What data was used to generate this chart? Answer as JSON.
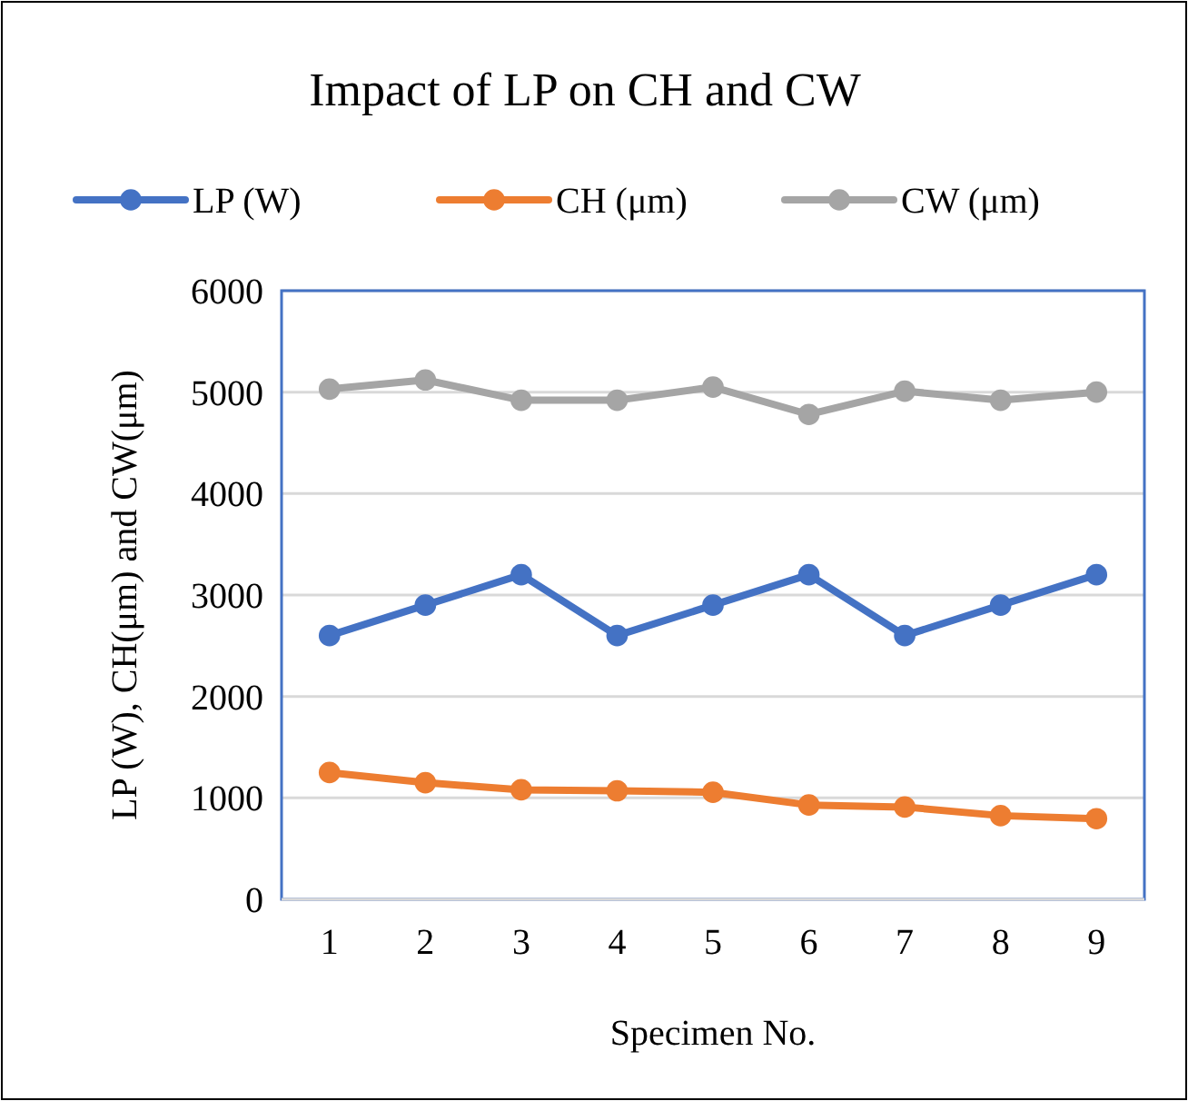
{
  "chart_data": {
    "type": "line",
    "title": "Impact of LP on CH and CW",
    "xlabel": "Specimen No.",
    "ylabel": "LP (W), CH(μm) and CW(μm)",
    "categories": [
      "1",
      "2",
      "3",
      "4",
      "5",
      "6",
      "7",
      "8",
      "9"
    ],
    "series": [
      {
        "name": "LP (W)",
        "color": "#4472c4",
        "values": [
          2600,
          2900,
          3200,
          2600,
          2900,
          3200,
          2600,
          2900,
          3200
        ]
      },
      {
        "name": "CH (μm)",
        "color": "#ed7d31",
        "values": [
          1250,
          1150,
          1080,
          1070,
          1055,
          930,
          910,
          825,
          795
        ]
      },
      {
        "name": "CW (μm)",
        "color": "#a5a5a5",
        "values": [
          5030,
          5120,
          4920,
          4920,
          5050,
          4780,
          5010,
          4920,
          5000
        ]
      }
    ],
    "ylim": [
      0,
      6000
    ],
    "yticks": [
      0,
      1000,
      2000,
      3000,
      4000,
      5000,
      6000
    ],
    "grid": "y",
    "legend": "top",
    "marker": "circle"
  }
}
